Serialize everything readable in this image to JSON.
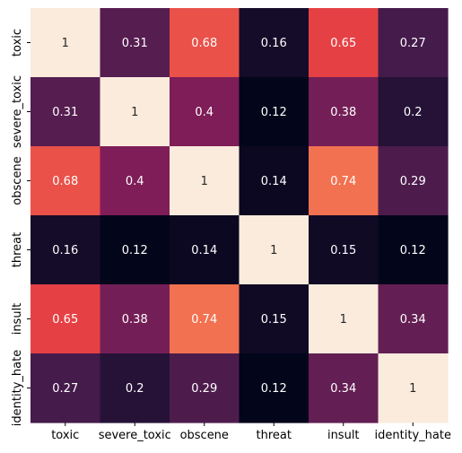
{
  "chart_data": {
    "type": "heatmap",
    "title": "",
    "xlabel": "",
    "ylabel": "",
    "x_categories": [
      "toxic",
      "severe_toxic",
      "obscene",
      "threat",
      "insult",
      "identity_hate"
    ],
    "y_categories": [
      "toxic",
      "severe_toxic",
      "obscene",
      "threat",
      "insult",
      "identity_hate"
    ],
    "values": [
      [
        1,
        0.31,
        0.68,
        0.16,
        0.65,
        0.27
      ],
      [
        0.31,
        1,
        0.4,
        0.12,
        0.38,
        0.2
      ],
      [
        0.68,
        0.4,
        1,
        0.14,
        0.74,
        0.29
      ],
      [
        0.16,
        0.12,
        0.14,
        1,
        0.15,
        0.12
      ],
      [
        0.65,
        0.38,
        0.74,
        0.15,
        1,
        0.34
      ],
      [
        0.27,
        0.2,
        0.29,
        0.12,
        0.34,
        1
      ]
    ],
    "value_labels": [
      [
        "1",
        "0.31",
        "0.68",
        "0.16",
        "0.65",
        "0.27"
      ],
      [
        "0.31",
        "1",
        "0.4",
        "0.12",
        "0.38",
        "0.2"
      ],
      [
        "0.68",
        "0.4",
        "1",
        "0.14",
        "0.74",
        "0.29"
      ],
      [
        "0.16",
        "0.12",
        "0.14",
        "1",
        "0.15",
        "0.12"
      ],
      [
        "0.65",
        "0.38",
        "0.74",
        "0.15",
        "1",
        "0.34"
      ],
      [
        "0.27",
        "0.2",
        "0.29",
        "0.12",
        "0.34",
        "1"
      ]
    ],
    "color_range": [
      0.12,
      1
    ],
    "colormap": "rocket",
    "colormap_stops": [
      "#03051a",
      "#3a1a48",
      "#701f57",
      "#ad1759",
      "#e13342",
      "#f37651",
      "#f6b48f",
      "#faebdd"
    ],
    "annotation_color_dark_cells": "#ffffff",
    "annotation_color_light_cells": "#262626",
    "colorbar": false,
    "grid": false,
    "legend": "none"
  }
}
